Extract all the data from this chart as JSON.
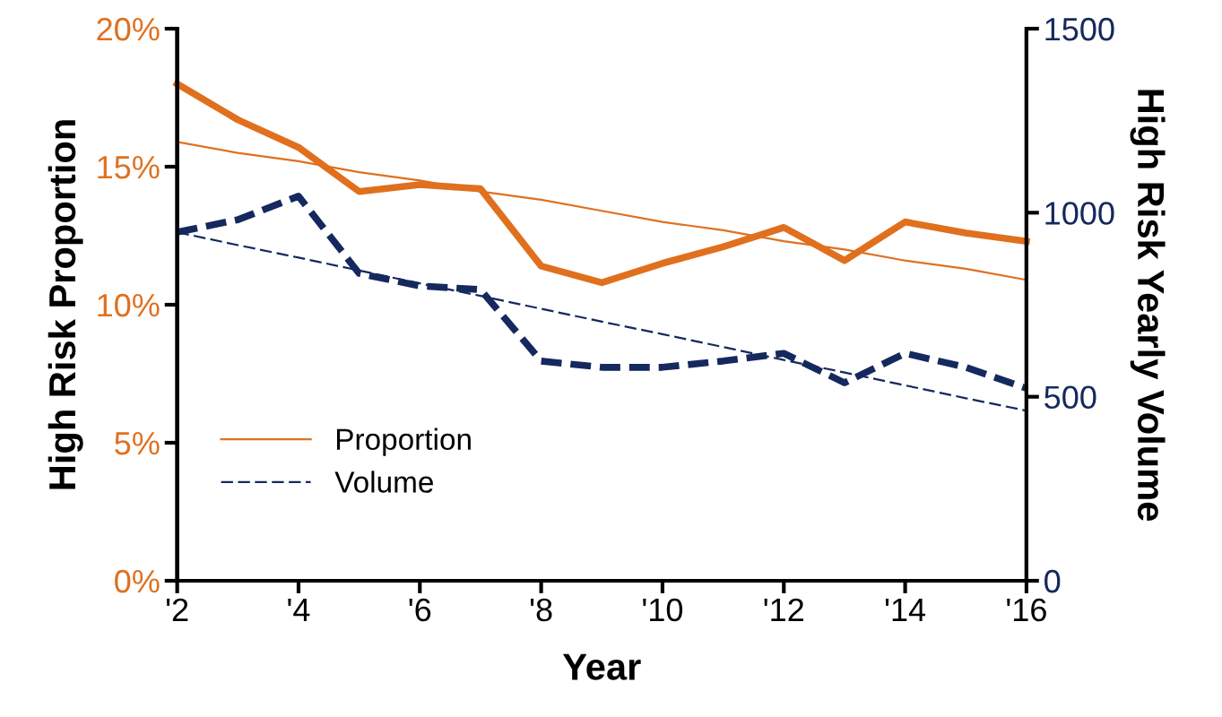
{
  "chart_data": {
    "type": "line",
    "xlabel": "Year",
    "ylabel": "High Risk Proportion",
    "y2label": "High Risk Yearly Volume",
    "x": [
      2,
      3,
      4,
      5,
      6,
      7,
      8,
      9,
      10,
      11,
      12,
      13,
      14,
      15,
      16
    ],
    "series": [
      {
        "color": "#e0701e",
        "line_style": "solid",
        "values": [
          18.0,
          16.7,
          15.7,
          14.1,
          14.35,
          14.2,
          11.4,
          10.8,
          11.5,
          12.1,
          12.8,
          11.6,
          13.0,
          12.6,
          12.3
        ]
      },
      {
        "color": "#15295e",
        "line_style": "dashed",
        "axis": "y2",
        "values": [
          947,
          981,
          1045,
          835,
          801,
          791,
          597,
          580,
          580,
          597,
          618,
          538,
          618,
          580,
          523
        ]
      },
      {
        "name": "Proportion",
        "color": "#e0701e",
        "line_style": "solid",
        "values": [
          15.9,
          15.5,
          15.2,
          14.8,
          14.5,
          14.1,
          13.8,
          13.4,
          13.0,
          12.7,
          12.3,
          12.0,
          11.6,
          11.3,
          10.9
        ]
      },
      {
        "name": "Volume",
        "color": "#15295e",
        "line_style": "dashed",
        "axis": "y2",
        "values": [
          947,
          912,
          878,
          843,
          808,
          774,
          739,
          704,
          670,
          635,
          600,
          566,
          531,
          496,
          462
        ]
      }
    ],
    "xlim": [
      2,
      16
    ],
    "ylim": [
      0,
      20
    ],
    "y2lim": [
      0,
      1500
    ],
    "xticks": [
      {
        "value": 2,
        "label": "'2"
      },
      {
        "value": 4,
        "label": "'4"
      },
      {
        "value": 6,
        "label": "'6"
      },
      {
        "value": 8,
        "label": "'8"
      },
      {
        "value": 10,
        "label": "'10"
      },
      {
        "value": 12,
        "label": "'12"
      },
      {
        "value": 14,
        "label": "'14"
      },
      {
        "value": 16,
        "label": "'16"
      }
    ],
    "yticks": [
      {
        "value": 0,
        "label": "0%"
      },
      {
        "value": 5,
        "label": "5%"
      },
      {
        "value": 10,
        "label": "10%"
      },
      {
        "value": 15,
        "label": "15%"
      },
      {
        "value": 20,
        "label": "20%"
      }
    ],
    "y2ticks": [
      0,
      500,
      1000,
      1500
    ],
    "legend": "bottom left",
    "grid": false,
    "marker": "none"
  }
}
